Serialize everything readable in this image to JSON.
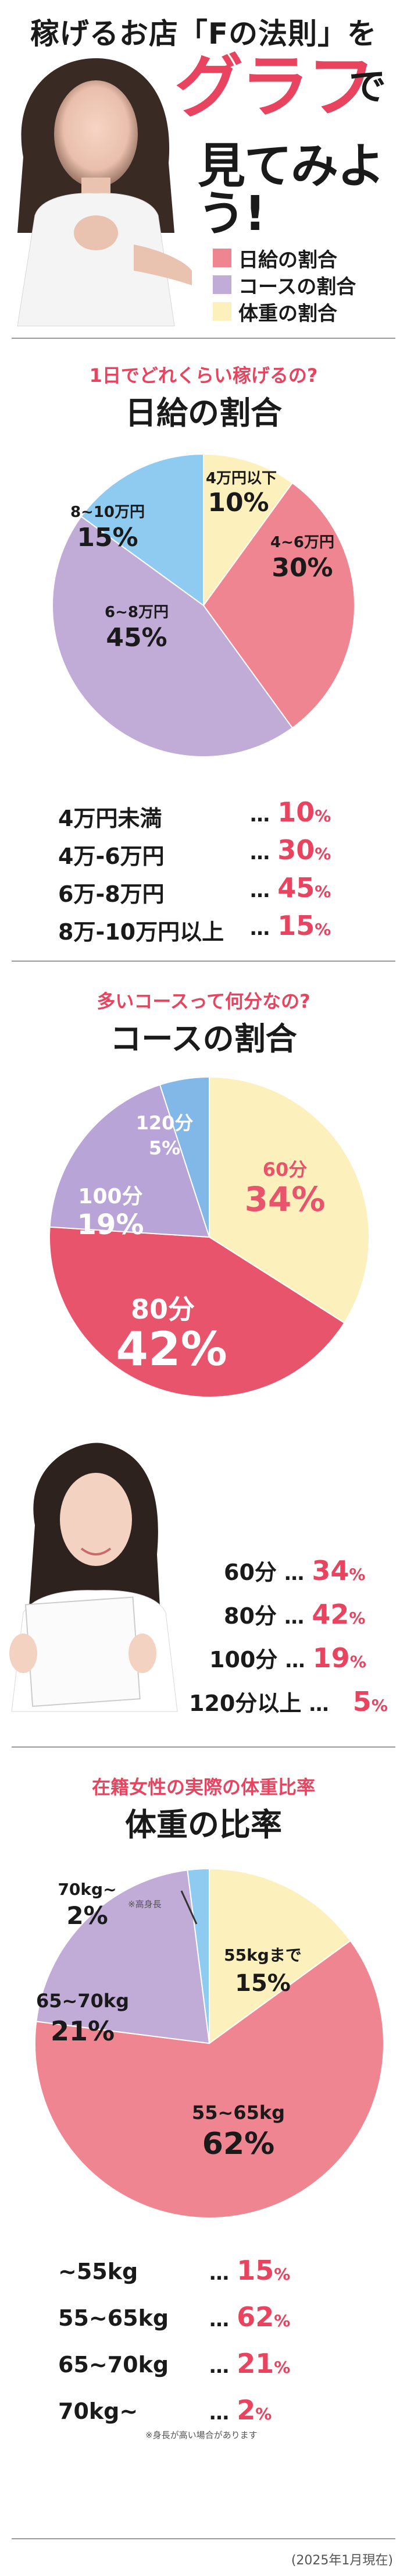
{
  "colors": {
    "pink": "#ef8590",
    "lavender": "#c1abd7",
    "yellow": "#fcf1bd",
    "blue": "#8fcbf0",
    "red_accent": "#e8435f",
    "pie_red": "#e8546c",
    "course_lavender": "#b8a4d6",
    "course_blue": "#82b8e8"
  },
  "header": {
    "title": "稼げるお店「Fの法則」を",
    "big": "グラフ",
    "de": "で",
    "mite": "見てみよう!",
    "legend": [
      {
        "label": "日給の割合",
        "color": "#ef8590"
      },
      {
        "label": "コースの割合",
        "color": "#c1abd7"
      },
      {
        "label": "体重の割合",
        "color": "#fcf1bd"
      }
    ]
  },
  "chart_data": [
    {
      "type": "pie",
      "subtitle": "1日でどれくらい稼げるの?",
      "title": "日給の割合",
      "slices": [
        {
          "label": "4万円以下",
          "value": 10,
          "color": "#fcf1bd"
        },
        {
          "label": "4~6万円",
          "value": 30,
          "color": "#ef8590"
        },
        {
          "label": "6~8万円",
          "value": 45,
          "color": "#c1abd7"
        },
        {
          "label": "8~10万円",
          "value": 15,
          "color": "#8fcbf0"
        }
      ],
      "list": [
        {
          "label": "4万円未満",
          "value": "10",
          "unit": "%"
        },
        {
          "label": "4万-6万円",
          "value": "30",
          "unit": "%"
        },
        {
          "label": "6万-8万円",
          "value": "45",
          "unit": "%"
        },
        {
          "label": "8万-10万円以上",
          "value": "15",
          "unit": "%"
        }
      ]
    },
    {
      "type": "pie",
      "subtitle": "多いコースって何分なの?",
      "title": "コースの割合",
      "slices": [
        {
          "label": "60分",
          "value": 34,
          "color": "#fcf1bd"
        },
        {
          "label": "80分",
          "value": 42,
          "color": "#e8546c"
        },
        {
          "label": "100分",
          "value": 19,
          "color": "#b8a4d6"
        },
        {
          "label": "120分",
          "value": 5,
          "color": "#82b8e8"
        }
      ],
      "list": [
        {
          "label": "60分",
          "value": "34",
          "unit": "%"
        },
        {
          "label": "80分",
          "value": "42",
          "unit": "%"
        },
        {
          "label": "100分",
          "value": "19",
          "unit": "%"
        },
        {
          "label": "120分以上",
          "value": "5",
          "unit": "%"
        }
      ]
    },
    {
      "type": "pie",
      "subtitle": "在籍女性の実際の体重比率",
      "title": "体重の比率",
      "slices": [
        {
          "label": "55kgまで",
          "value": 15,
          "color": "#fcf1bd"
        },
        {
          "label": "55~65kg",
          "value": 62,
          "color": "#ef8590"
        },
        {
          "label": "65~70kg",
          "value": 21,
          "color": "#c1abd7"
        },
        {
          "label": "70kg~",
          "value": 2,
          "color": "#8fcbf0"
        }
      ],
      "list": [
        {
          "label": "~55kg",
          "value": "15",
          "unit": "%"
        },
        {
          "label": "55~65kg",
          "value": "62",
          "unit": "%"
        },
        {
          "label": "65~70kg",
          "value": "21",
          "unit": "%"
        },
        {
          "label": "70kg~",
          "value": "2",
          "unit": "%"
        }
      ],
      "notes": {
        "tall_note": "※高身長",
        "height_note": "※身長が高い場合があります"
      }
    }
  ],
  "pie_labels": {
    "p1": [
      {
        "name": "4万円以下",
        "pct": "10%"
      },
      {
        "name": "4~6万円",
        "pct": "30%"
      },
      {
        "name": "6~8万円",
        "pct": "45%"
      },
      {
        "name": "8~10万円",
        "pct": "15%"
      }
    ],
    "p2": [
      {
        "name": "60分",
        "pct": "34%"
      },
      {
        "name": "80分",
        "pct": "42%"
      },
      {
        "name": "100分",
        "pct": "19%"
      },
      {
        "name": "120分",
        "pct": "5%"
      }
    ],
    "p3": [
      {
        "name": "55kgまで",
        "pct": "15%"
      },
      {
        "name": "55~65kg",
        "pct": "62%"
      },
      {
        "name": "65~70kg",
        "pct": "21%"
      },
      {
        "name": "70kg~",
        "pct": "2%"
      }
    ]
  },
  "footer": {
    "date_note": "(2025年1月現在)"
  }
}
